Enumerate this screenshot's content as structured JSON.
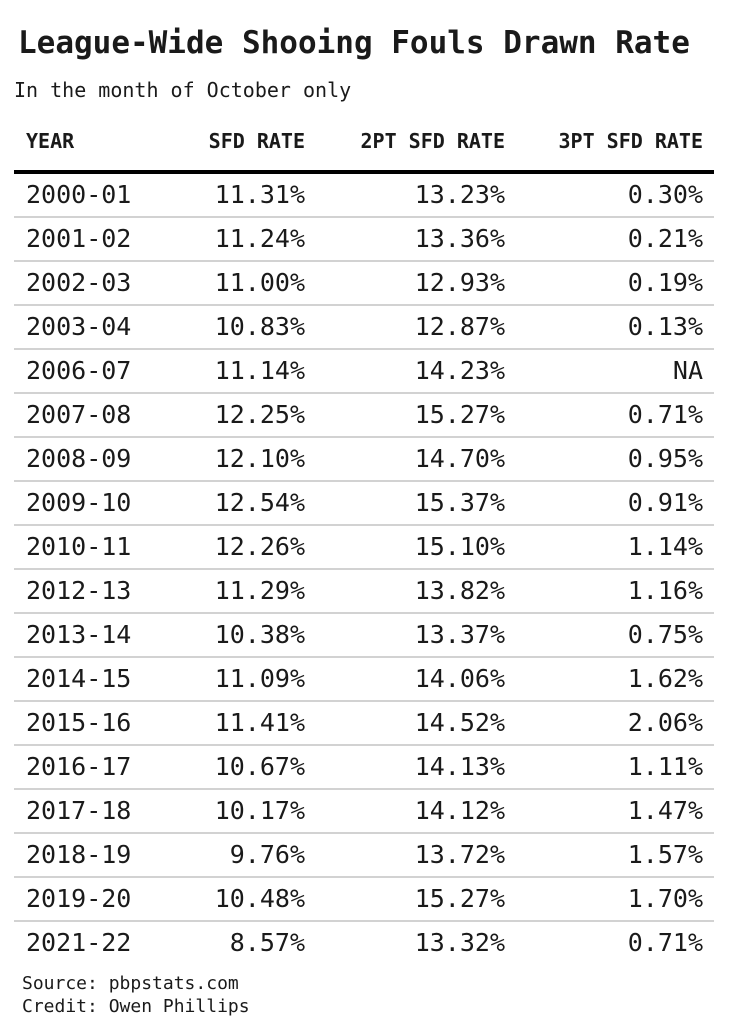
{
  "header": {
    "title": "League-Wide Shooing Fouls Drawn Rate",
    "subtitle": "In the month of October only"
  },
  "footer": {
    "source_label": "Source: pbpstats.com",
    "credit_label": "Credit: Owen Phillips"
  },
  "colors": {
    "background": "#ffffff",
    "text": "#1a1a1a",
    "header_rule": "#000000",
    "row_rule": "#d2d2d2"
  },
  "chart_data": {
    "type": "table",
    "title": "League-Wide Shooing Fouls Drawn Rate",
    "subtitle": "In the month of October only",
    "columns": [
      "YEAR",
      "SFD RATE",
      "2PT SFD RATE",
      "3PT SFD RATE"
    ],
    "rows": [
      [
        "2000-01",
        "11.31%",
        "13.23%",
        "0.30%"
      ],
      [
        "2001-02",
        "11.24%",
        "13.36%",
        "0.21%"
      ],
      [
        "2002-03",
        "11.00%",
        "12.93%",
        "0.19%"
      ],
      [
        "2003-04",
        "10.83%",
        "12.87%",
        "0.13%"
      ],
      [
        "2006-07",
        "11.14%",
        "14.23%",
        "NA"
      ],
      [
        "2007-08",
        "12.25%",
        "15.27%",
        "0.71%"
      ],
      [
        "2008-09",
        "12.10%",
        "14.70%",
        "0.95%"
      ],
      [
        "2009-10",
        "12.54%",
        "15.37%",
        "0.91%"
      ],
      [
        "2010-11",
        "12.26%",
        "15.10%",
        "1.14%"
      ],
      [
        "2012-13",
        "11.29%",
        "13.82%",
        "1.16%"
      ],
      [
        "2013-14",
        "10.38%",
        "13.37%",
        "0.75%"
      ],
      [
        "2014-15",
        "11.09%",
        "14.06%",
        "1.62%"
      ],
      [
        "2015-16",
        "11.41%",
        "14.52%",
        "2.06%"
      ],
      [
        "2016-17",
        "10.67%",
        "14.13%",
        "1.11%"
      ],
      [
        "2017-18",
        "10.17%",
        "14.12%",
        "1.47%"
      ],
      [
        "2018-19",
        "9.76%",
        "13.72%",
        "1.57%"
      ],
      [
        "2019-20",
        "10.48%",
        "15.27%",
        "1.70%"
      ],
      [
        "2021-22",
        "8.57%",
        "13.32%",
        "0.71%"
      ]
    ],
    "notes": [
      "Source: pbpstats.com",
      "Credit: Owen Phillips"
    ]
  }
}
